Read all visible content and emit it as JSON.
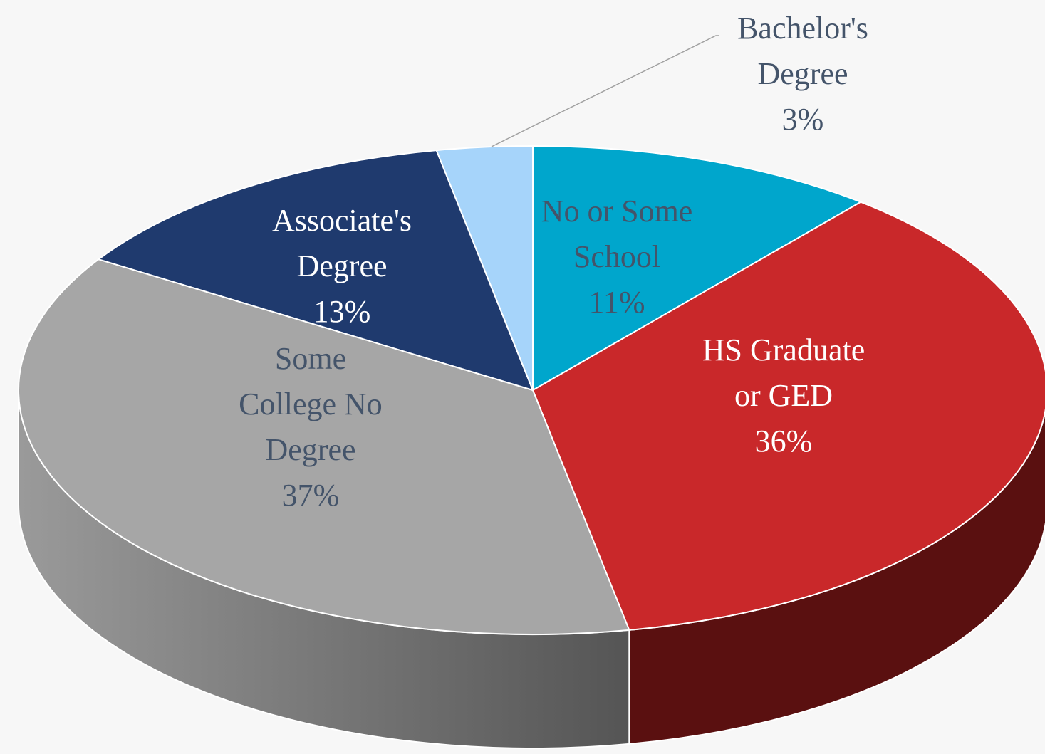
{
  "chart_data": {
    "type": "pie",
    "categories": [
      "No or Some\nSchool",
      "HS Graduate\nor GED",
      "Some\nCollege No\nDegree",
      "Associate's\nDegree",
      "Bachelor's\nDegree"
    ],
    "values": [
      11,
      36,
      37,
      13,
      3
    ],
    "value_labels": [
      "11%",
      "36%",
      "37%",
      "13%",
      "3%"
    ],
    "colors": [
      "#00a6cc",
      "#c9282a",
      "#a6a6a6",
      "#1f3a6e",
      "#a6d4fa"
    ]
  }
}
